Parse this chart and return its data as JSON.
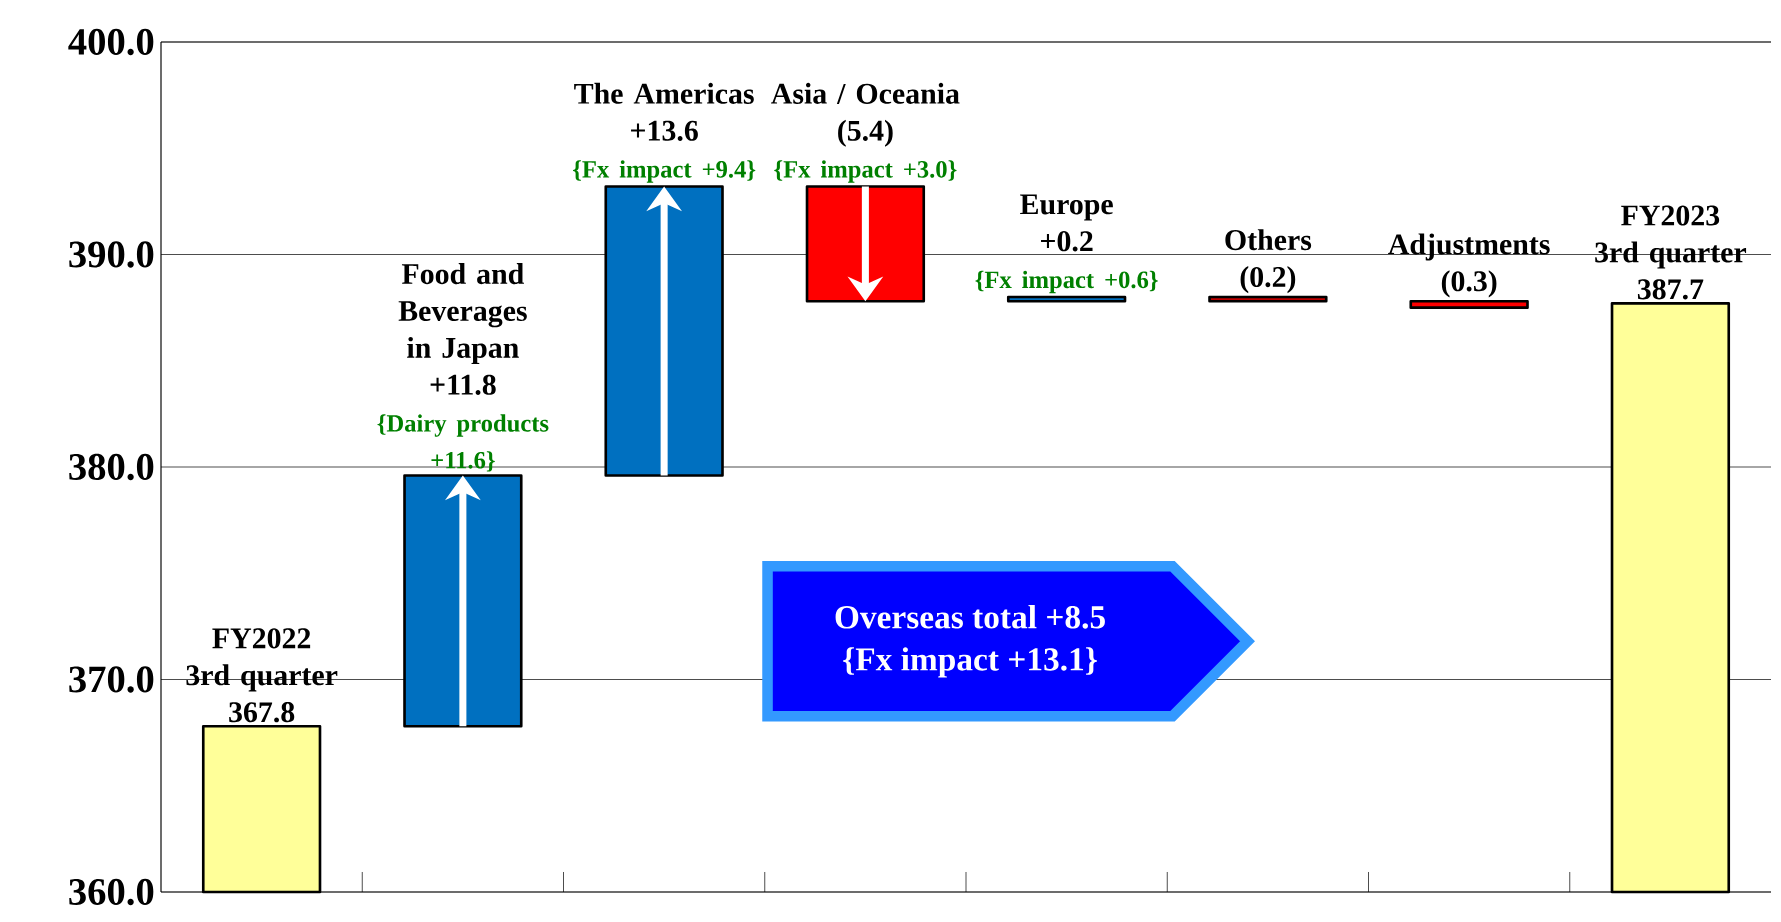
{
  "chart_data": {
    "type": "bar",
    "categories": [
      "FY2022 3rd quarter",
      "Food and Beverages in Japan",
      "The Americas",
      "Asia / Oceania",
      "Europe",
      "Others",
      "Adjustments",
      "FY2023 3rd quarter"
    ],
    "values": [
      367.8,
      11.8,
      13.6,
      -5.4,
      0.2,
      -0.2,
      -0.3,
      387.7
    ],
    "base": [
      null,
      367.8,
      379.6,
      393.2,
      387.8,
      388.0,
      387.8,
      null
    ],
    "colors": [
      "#ffff99",
      "#0070c0",
      "#0070c0",
      "#ff0000",
      "#0070c0",
      "#c00000",
      "#ff0000",
      "#ffff99"
    ],
    "value_labels": [
      "367.8",
      "+11.8",
      "+13.6",
      "(5.4)",
      "+0.2",
      "(0.2)",
      "(0.3)",
      "387.7"
    ],
    "ylim": [
      360,
      400
    ],
    "yticks": [
      {
        "value": 360,
        "label": "360.0"
      },
      {
        "value": 370,
        "label": "370.0"
      },
      {
        "value": 380,
        "label": "380.0"
      },
      {
        "value": 390,
        "label": "390.0"
      },
      {
        "value": 400,
        "label": "400.0"
      }
    ],
    "grid": "y",
    "annotations": [
      "{Dairy products +11.6}",
      "{Fx impact +9.4}",
      "{Fx impact +3.0}",
      "{Fx impact +0.6}",
      "Overseas total   +8.5",
      "{Fx impact +13.1}"
    ]
  }
}
